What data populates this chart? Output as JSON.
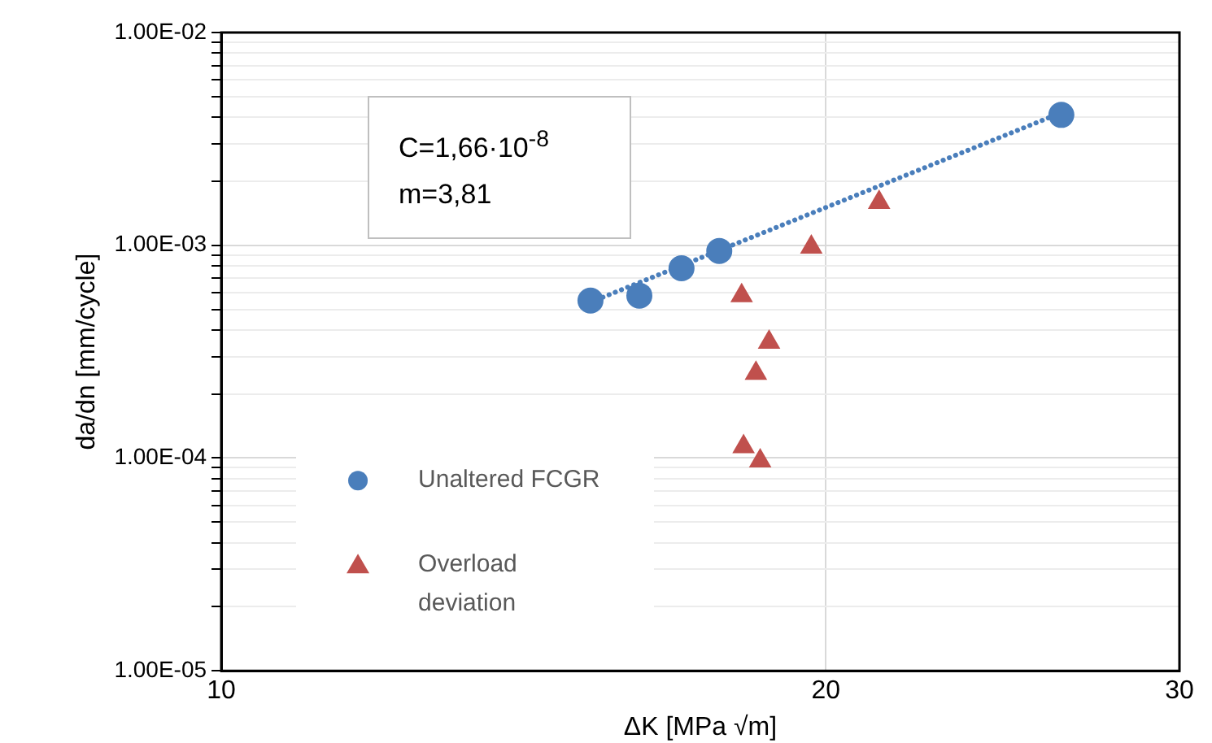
{
  "chart_data": {
    "type": "scatter",
    "xlabel": "ΔK [MPa √m]",
    "ylabel": "da/dn [mm/cycle]",
    "annotations": [
      "C=1,66·10$^{-8}$",
      "m=3,81"
    ],
    "log": "xy",
    "xlim": [
      10,
      30
    ],
    "xticks": [
      10,
      20,
      30
    ],
    "ylim": [
      1e-05,
      0.01
    ],
    "yticks": [
      {
        "value": 1e-05,
        "label": "1.00E-05"
      },
      {
        "value": 2e-05,
        "label": null
      },
      {
        "value": 3e-05,
        "label": null
      },
      {
        "value": 4e-05,
        "label": null
      },
      {
        "value": 5e-05,
        "label": null
      },
      {
        "value": 6e-05,
        "label": null
      },
      {
        "value": 7e-05,
        "label": null
      },
      {
        "value": 8e-05,
        "label": null
      },
      {
        "value": 9e-05,
        "label": null
      },
      {
        "value": 0.0001,
        "label": "1.00E-04"
      },
      {
        "value": 0.0002,
        "label": null
      },
      {
        "value": 0.0003,
        "label": null
      },
      {
        "value": 0.0004,
        "label": null
      },
      {
        "value": 0.0005,
        "label": null
      },
      {
        "value": 0.0006,
        "label": null
      },
      {
        "value": 0.0007,
        "label": null
      },
      {
        "value": 0.0008,
        "label": null
      },
      {
        "value": 0.0009,
        "label": null
      },
      {
        "value": 0.001,
        "label": "1.00E-03"
      },
      {
        "value": 0.002,
        "label": null
      },
      {
        "value": 0.003,
        "label": null
      },
      {
        "value": 0.004,
        "label": null
      },
      {
        "value": 0.005,
        "label": null
      },
      {
        "value": 0.006,
        "label": null
      },
      {
        "value": 0.007,
        "label": null
      },
      {
        "value": 0.008,
        "label": null
      },
      {
        "value": 0.009,
        "label": null
      },
      {
        "value": 0.01,
        "label": "1.00E-02"
      }
    ],
    "grid": true,
    "legend": "bottom left",
    "series": [
      {
        "name": "Unaltered FCGR",
        "marker": "circle",
        "color": "#4a7ebb",
        "x": [
          15.27,
          16.15,
          16.95,
          17.7,
          26.2
        ],
        "values": [
          0.00055,
          0.00058,
          0.00078,
          0.00094,
          0.0041
        ]
      },
      {
        "name": "Overload deviation",
        "marker": "triangle",
        "color": "#c0504d",
        "x": [
          18.16,
          19.67,
          21.26,
          18.74,
          18.46,
          18.2,
          18.55
        ],
        "values": [
          0.00058,
          0.00098,
          0.00159,
          0.00035,
          0.00025,
          0.000113,
          9.7e-05
        ]
      },
      {
        "type": "line",
        "marker": "none",
        "line_style": "dotted",
        "color": "#4a7ebb",
        "x": [
          15.27,
          26.2
        ],
        "values": [
          0.00054,
          0.0042
        ]
      }
    ]
  }
}
